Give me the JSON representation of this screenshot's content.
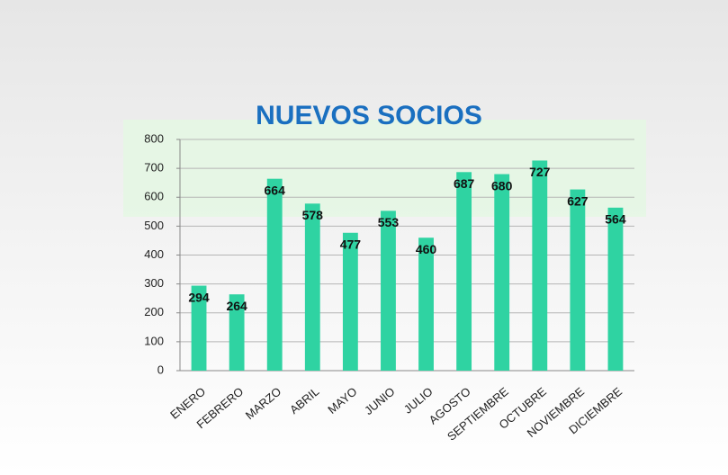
{
  "chart_data": {
    "type": "bar",
    "title": "NUEVOS SOCIOS",
    "categories": [
      "ENERO",
      "FEBRERO",
      "MARZO",
      "ABRIL",
      "MAYO",
      "JUNIO",
      "JULIO",
      "AGOSTO",
      "SEPTIEMBRE",
      "OCTUBRE",
      "NOVIEMBRE",
      "DICIEMBRE"
    ],
    "values": [
      294,
      264,
      664,
      578,
      477,
      553,
      460,
      687,
      680,
      727,
      627,
      564
    ],
    "color": "#2fd3a2",
    "ylim": [
      0,
      800
    ],
    "yticks": [
      0,
      100,
      200,
      300,
      400,
      500,
      600,
      700,
      800
    ],
    "grid": true
  }
}
